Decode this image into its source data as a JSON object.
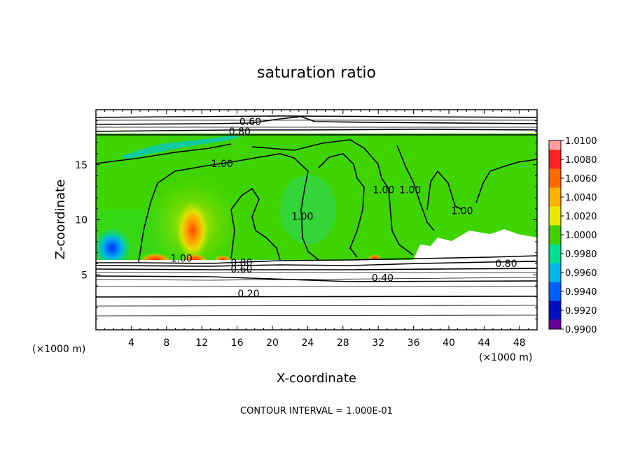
{
  "chart_data": {
    "type": "heatmap",
    "title": "saturation ratio",
    "xlabel": "X-coordinate",
    "ylabel": "Z-coordinate",
    "x_unit_label_left": "(×1000 m)",
    "x_unit_label_right": "(×1000 m)",
    "xlim": [
      0,
      50
    ],
    "ylim": [
      0,
      20
    ],
    "x_ticks": [
      "4",
      "8",
      "12",
      "16",
      "20",
      "24",
      "28",
      "32",
      "36",
      "40",
      "44",
      "48"
    ],
    "x_tick_values": [
      4,
      8,
      12,
      16,
      20,
      24,
      28,
      32,
      36,
      40,
      44,
      48
    ],
    "y_ticks": [
      "5",
      "10",
      "15"
    ],
    "y_tick_values": [
      5,
      10,
      15
    ],
    "colorbar": {
      "labels": [
        "1.0100",
        "1.0080",
        "1.0060",
        "1.0040",
        "1.0020",
        "1.0000",
        "0.9980",
        "0.9960",
        "0.9940",
        "0.9920",
        "0.9900"
      ],
      "values": [
        1.01,
        1.008,
        1.006,
        1.004,
        1.002,
        1.0,
        0.998,
        0.996,
        0.994,
        0.992,
        0.99
      ],
      "colors": [
        "#ff9fa0",
        "#ff2020",
        "#ff6a00",
        "#ffb000",
        "#e8e800",
        "#40d000",
        "#00e090",
        "#00b8e8",
        "#0060ff",
        "#0010c0",
        "#6a00a0"
      ]
    },
    "contour_labels": [
      {
        "text": "0.60",
        "x": 17.5,
        "y": 18.6
      },
      {
        "text": "0.80",
        "x": 16.3,
        "y": 17.7
      },
      {
        "text": "1.00",
        "x": 14.3,
        "y": 14.8
      },
      {
        "text": "1.00",
        "x": 23.4,
        "y": 10.0
      },
      {
        "text": "1.00",
        "x": 32.6,
        "y": 12.4
      },
      {
        "text": "1.00",
        "x": 35.6,
        "y": 12.4
      },
      {
        "text": "1.00",
        "x": 41.5,
        "y": 10.5
      },
      {
        "text": "1.00",
        "x": 9.7,
        "y": 6.2
      },
      {
        "text": "0.80",
        "x": 16.5,
        "y": 5.8
      },
      {
        "text": "0.60",
        "x": 16.5,
        "y": 5.2
      },
      {
        "text": "0.80",
        "x": 46.5,
        "y": 5.7
      },
      {
        "text": "0.40",
        "x": 32.5,
        "y": 4.4
      },
      {
        "text": "0.20",
        "x": 17.3,
        "y": 3.0
      }
    ],
    "contour_interval_text": "CONTOUR INTERVAL = 1.000E-01"
  }
}
